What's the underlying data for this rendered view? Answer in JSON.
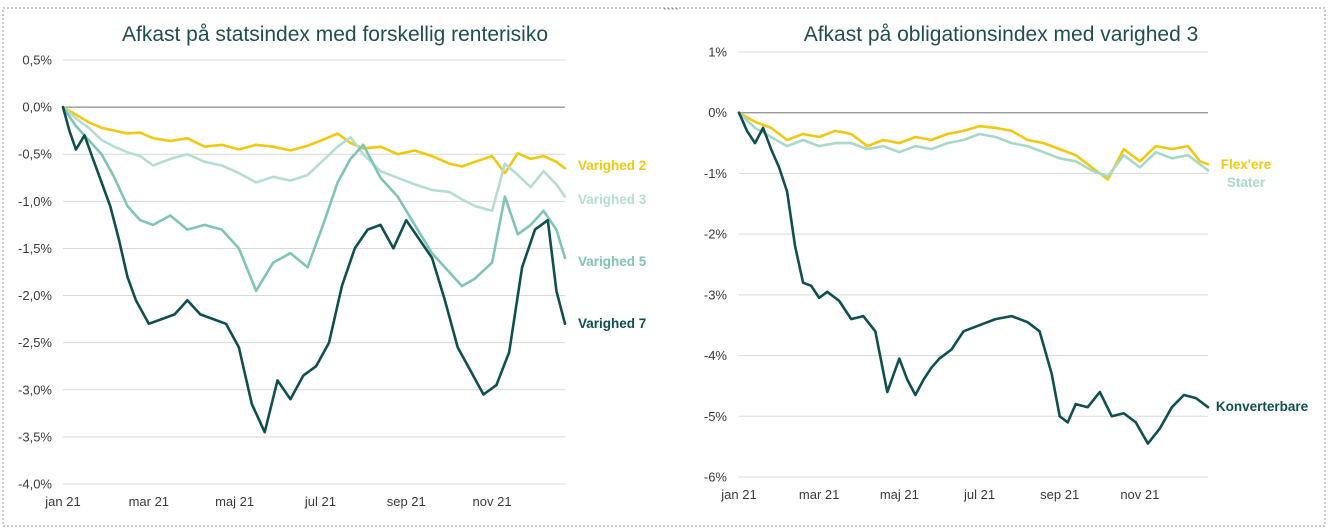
{
  "chart_data": [
    {
      "type": "line",
      "title": "Afkast på statsindex med forskellig renterisiko",
      "xlabel": "",
      "ylabel": "",
      "x_ticks": [
        "jan 21",
        "mar 21",
        "maj 21",
        "jul 21",
        "sep 21",
        "nov 21"
      ],
      "y_ticks": [
        "0,5%",
        "0,0%",
        "-0,5%",
        "-1,0%",
        "-1,5%",
        "-2,0%",
        "-2,5%",
        "-3,0%",
        "-3,5%",
        "-4,0%"
      ],
      "ylim": [
        -4.0,
        0.5
      ],
      "x_month_range": [
        0,
        11.7
      ],
      "grid": true,
      "legend": "inline-right",
      "series": [
        {
          "name": "Varighed 2",
          "color": "#f2c80f",
          "x": [
            0,
            0.3,
            0.6,
            0.9,
            1.2,
            1.5,
            1.8,
            2.1,
            2.5,
            2.9,
            3.3,
            3.7,
            4.1,
            4.5,
            4.9,
            5.3,
            5.7,
            6.1,
            6.4,
            6.7,
            7.0,
            7.4,
            7.8,
            8.2,
            8.6,
            9.0,
            9.3,
            9.6,
            10.0,
            10.3,
            10.6,
            10.9,
            11.2,
            11.5,
            11.7
          ],
          "y": [
            0.0,
            -0.08,
            -0.16,
            -0.22,
            -0.25,
            -0.28,
            -0.27,
            -0.33,
            -0.36,
            -0.33,
            -0.42,
            -0.4,
            -0.45,
            -0.4,
            -0.42,
            -0.46,
            -0.41,
            -0.34,
            -0.28,
            -0.38,
            -0.44,
            -0.42,
            -0.5,
            -0.46,
            -0.52,
            -0.6,
            -0.63,
            -0.58,
            -0.52,
            -0.7,
            -0.49,
            -0.55,
            -0.52,
            -0.58,
            -0.65
          ]
        },
        {
          "name": "Varighed 3",
          "color": "#b5ddd3",
          "x": [
            0,
            0.3,
            0.6,
            0.9,
            1.2,
            1.5,
            1.8,
            2.1,
            2.5,
            2.9,
            3.3,
            3.7,
            4.1,
            4.5,
            4.9,
            5.3,
            5.7,
            6.1,
            6.4,
            6.7,
            7.0,
            7.4,
            7.8,
            8.2,
            8.6,
            9.0,
            9.3,
            9.6,
            10.0,
            10.3,
            10.6,
            10.9,
            11.2,
            11.5,
            11.7
          ],
          "y": [
            0.0,
            -0.12,
            -0.22,
            -0.35,
            -0.42,
            -0.48,
            -0.52,
            -0.62,
            -0.55,
            -0.5,
            -0.58,
            -0.62,
            -0.7,
            -0.8,
            -0.74,
            -0.78,
            -0.72,
            -0.55,
            -0.42,
            -0.32,
            -0.5,
            -0.68,
            -0.75,
            -0.82,
            -0.88,
            -0.9,
            -0.98,
            -1.05,
            -1.1,
            -0.6,
            -0.72,
            -0.85,
            -0.68,
            -0.82,
            -0.95
          ]
        },
        {
          "name": "Varighed 5",
          "color": "#7fc4b4",
          "x": [
            0,
            0.3,
            0.6,
            0.9,
            1.2,
            1.5,
            1.8,
            2.1,
            2.5,
            2.9,
            3.3,
            3.7,
            4.1,
            4.5,
            4.9,
            5.3,
            5.7,
            6.1,
            6.4,
            6.7,
            7.0,
            7.4,
            7.8,
            8.2,
            8.6,
            9.0,
            9.3,
            9.6,
            10.0,
            10.3,
            10.6,
            10.9,
            11.2,
            11.5,
            11.7
          ],
          "y": [
            0.0,
            -0.2,
            -0.35,
            -0.5,
            -0.75,
            -1.05,
            -1.2,
            -1.25,
            -1.15,
            -1.3,
            -1.25,
            -1.3,
            -1.5,
            -1.95,
            -1.65,
            -1.55,
            -1.7,
            -1.2,
            -0.8,
            -0.55,
            -0.4,
            -0.75,
            -0.95,
            -1.25,
            -1.55,
            -1.75,
            -1.9,
            -1.82,
            -1.65,
            -0.95,
            -1.35,
            -1.25,
            -1.1,
            -1.3,
            -1.6
          ]
        },
        {
          "name": "Varighed 7",
          "color": "#0f4f4f",
          "x": [
            0,
            0.15,
            0.3,
            0.5,
            0.7,
            0.9,
            1.1,
            1.3,
            1.5,
            1.7,
            2.0,
            2.3,
            2.6,
            2.9,
            3.2,
            3.5,
            3.8,
            4.1,
            4.4,
            4.7,
            5.0,
            5.3,
            5.6,
            5.9,
            6.2,
            6.5,
            6.8,
            7.1,
            7.4,
            7.7,
            8.0,
            8.3,
            8.6,
            8.9,
            9.2,
            9.5,
            9.8,
            10.1,
            10.4,
            10.7,
            11.0,
            11.3,
            11.5,
            11.7
          ],
          "y": [
            0.0,
            -0.25,
            -0.45,
            -0.3,
            -0.55,
            -0.8,
            -1.05,
            -1.4,
            -1.8,
            -2.05,
            -2.3,
            -2.25,
            -2.2,
            -2.05,
            -2.2,
            -2.25,
            -2.3,
            -2.55,
            -3.15,
            -3.45,
            -2.9,
            -3.1,
            -2.85,
            -2.75,
            -2.5,
            -1.9,
            -1.5,
            -1.3,
            -1.25,
            -1.5,
            -1.2,
            -1.4,
            -1.6,
            -2.05,
            -2.55,
            -2.8,
            -3.05,
            -2.95,
            -2.6,
            -1.7,
            -1.3,
            -1.2,
            -1.95,
            -2.3
          ]
        }
      ]
    },
    {
      "type": "line",
      "title": "Afkast på obligationsindex med varighed 3",
      "xlabel": "",
      "ylabel": "",
      "x_ticks": [
        "jan 21",
        "mar 21",
        "maj 21",
        "jul 21",
        "sep 21",
        "nov 21"
      ],
      "y_ticks": [
        "1%",
        "0%",
        "-1%",
        "-2%",
        "-3%",
        "-4%",
        "-5%",
        "-6%"
      ],
      "ylim": [
        -6,
        1
      ],
      "x_month_range": [
        0,
        11.7
      ],
      "grid": true,
      "legend": "inline-right",
      "series": [
        {
          "name": "Flex'ere",
          "color": "#f2c80f",
          "x": [
            0,
            0.4,
            0.8,
            1.2,
            1.6,
            2.0,
            2.4,
            2.8,
            3.2,
            3.6,
            4.0,
            4.4,
            4.8,
            5.2,
            5.6,
            6.0,
            6.4,
            6.8,
            7.2,
            7.6,
            8.0,
            8.4,
            8.8,
            9.2,
            9.6,
            10.0,
            10.4,
            10.8,
            11.2,
            11.5,
            11.7
          ],
          "y": [
            0.0,
            -0.15,
            -0.25,
            -0.45,
            -0.35,
            -0.4,
            -0.3,
            -0.35,
            -0.55,
            -0.45,
            -0.5,
            -0.4,
            -0.45,
            -0.35,
            -0.3,
            -0.22,
            -0.25,
            -0.3,
            -0.45,
            -0.5,
            -0.6,
            -0.7,
            -0.9,
            -1.1,
            -0.6,
            -0.8,
            -0.55,
            -0.6,
            -0.55,
            -0.8,
            -0.85
          ]
        },
        {
          "name": "Stater",
          "color": "#a8d8c8",
          "x": [
            0,
            0.4,
            0.8,
            1.2,
            1.6,
            2.0,
            2.4,
            2.8,
            3.2,
            3.6,
            4.0,
            4.4,
            4.8,
            5.2,
            5.6,
            6.0,
            6.4,
            6.8,
            7.2,
            7.6,
            8.0,
            8.4,
            8.8,
            9.2,
            9.6,
            10.0,
            10.4,
            10.8,
            11.2,
            11.5,
            11.7
          ],
          "y": [
            0.0,
            -0.25,
            -0.4,
            -0.55,
            -0.45,
            -0.55,
            -0.5,
            -0.5,
            -0.6,
            -0.55,
            -0.65,
            -0.55,
            -0.6,
            -0.5,
            -0.45,
            -0.35,
            -0.4,
            -0.5,
            -0.55,
            -0.65,
            -0.75,
            -0.8,
            -0.95,
            -1.05,
            -0.7,
            -0.9,
            -0.65,
            -0.75,
            -0.7,
            -0.85,
            -0.95
          ]
        },
        {
          "name": "Konverterbare",
          "color": "#0f4f4f",
          "x": [
            0,
            0.2,
            0.4,
            0.6,
            0.8,
            1.0,
            1.2,
            1.4,
            1.6,
            1.8,
            2.0,
            2.2,
            2.5,
            2.8,
            3.1,
            3.4,
            3.7,
            4.0,
            4.2,
            4.4,
            4.6,
            4.8,
            5.0,
            5.3,
            5.6,
            6.0,
            6.4,
            6.8,
            7.2,
            7.5,
            7.8,
            8.0,
            8.2,
            8.4,
            8.7,
            9.0,
            9.3,
            9.6,
            9.9,
            10.2,
            10.5,
            10.8,
            11.1,
            11.4,
            11.7
          ],
          "y": [
            0.0,
            -0.3,
            -0.5,
            -0.25,
            -0.6,
            -0.9,
            -1.3,
            -2.2,
            -2.8,
            -2.85,
            -3.05,
            -2.95,
            -3.1,
            -3.4,
            -3.35,
            -3.6,
            -4.6,
            -4.05,
            -4.4,
            -4.65,
            -4.4,
            -4.2,
            -4.05,
            -3.9,
            -3.6,
            -3.5,
            -3.4,
            -3.35,
            -3.45,
            -3.6,
            -4.3,
            -5.0,
            -5.1,
            -4.8,
            -4.85,
            -4.6,
            -5.0,
            -4.95,
            -5.1,
            -5.45,
            -5.2,
            -4.85,
            -4.65,
            -4.7,
            -4.85
          ]
        }
      ]
    }
  ]
}
